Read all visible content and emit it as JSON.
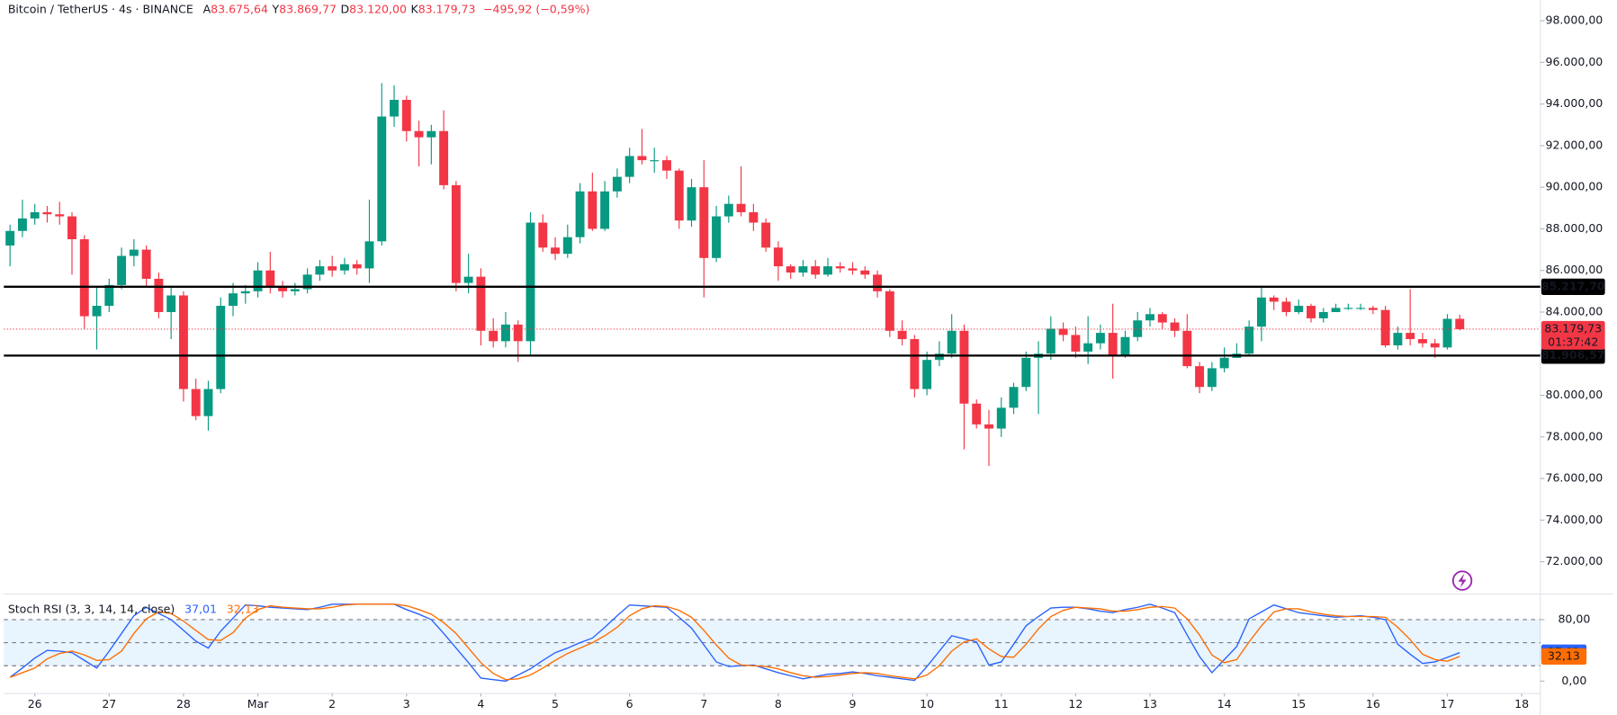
{
  "chart_data": {
    "type": "candlestick",
    "header": {
      "symbol": "Bitcoin / TetherUS · 4s · BINANCE",
      "items": [
        {
          "key": "A",
          "text": "83.675,64"
        },
        {
          "key": "Y",
          "text": "83.869,77"
        },
        {
          "key": "D",
          "text": "83.120,00"
        },
        {
          "key": "K",
          "text": "83.179,73"
        }
      ],
      "change": "−495,92 (−0,59%)"
    },
    "up_color": "#089981",
    "down_color": "#f23645",
    "xlim": [
      -0.5,
      123.5
    ],
    "xticks": [
      {
        "value": 2,
        "label": "26"
      },
      {
        "value": 8,
        "label": "27"
      },
      {
        "value": 14,
        "label": "28"
      },
      {
        "value": 20,
        "label": "Mar"
      },
      {
        "value": 26,
        "label": "2"
      },
      {
        "value": 32,
        "label": "3"
      },
      {
        "value": 38,
        "label": "4"
      },
      {
        "value": 44,
        "label": "5"
      },
      {
        "value": 50,
        "label": "6"
      },
      {
        "value": 56,
        "label": "7"
      },
      {
        "value": 62,
        "label": "8"
      },
      {
        "value": 68,
        "label": "9"
      },
      {
        "value": 74,
        "label": "10"
      },
      {
        "value": 80,
        "label": "11"
      },
      {
        "value": 86,
        "label": "12"
      },
      {
        "value": 92,
        "label": "13"
      },
      {
        "value": 98,
        "label": "14"
      },
      {
        "value": 104,
        "label": "15"
      },
      {
        "value": 110,
        "label": "16"
      },
      {
        "value": 116,
        "label": "17"
      },
      {
        "value": 122,
        "label": "18"
      }
    ],
    "ylim": [
      70500,
      99000
    ],
    "yticks": [
      {
        "value": 72000,
        "label": "72.000,00"
      },
      {
        "value": 74000,
        "label": "74.000,00"
      },
      {
        "value": 76000,
        "label": "76.000,00"
      },
      {
        "value": 78000,
        "label": "78.000,00"
      },
      {
        "value": 80000,
        "label": "80.000,00"
      },
      {
        "value": 82000,
        "label": "82.000,00"
      },
      {
        "value": 84000,
        "label": "84.000,00"
      },
      {
        "value": 86000,
        "label": "86.000,00"
      },
      {
        "value": 88000,
        "label": "88.000,00"
      },
      {
        "value": 90000,
        "label": "90.000,00"
      },
      {
        "value": 92000,
        "label": "92.000,00"
      },
      {
        "value": 94000,
        "label": "94.000,00"
      },
      {
        "value": 96000,
        "label": "96.000,00"
      },
      {
        "value": 98000,
        "label": "98.000,00"
      }
    ],
    "open": [
      87200,
      87900,
      88500,
      88800,
      88700,
      88600,
      87500,
      83800,
      84300,
      85300,
      86700,
      87000,
      85600,
      84000,
      84800,
      80300,
      79000,
      80300,
      84300,
      84900,
      85000,
      86000,
      85200,
      85000,
      85100,
      85800,
      86200,
      86000,
      86300,
      86100,
      87400,
      93400,
      94200,
      92700,
      92400,
      92700,
      90100,
      85400,
      85700,
      83100,
      82600,
      83400,
      82600,
      88300,
      87100,
      86800,
      87600,
      89800,
      88000,
      89800,
      90500,
      91500,
      91300,
      91300,
      90800,
      88400,
      90000,
      86600,
      88600,
      89200,
      88800,
      88300,
      87100,
      86200,
      85900,
      86200,
      85800,
      86200,
      86100,
      86000,
      85800,
      85000,
      83100,
      82700,
      80300,
      81700,
      82000,
      83100,
      79600,
      78600,
      78400,
      79400,
      80400,
      81800,
      82000,
      83200,
      82900,
      82100,
      82500,
      83000,
      81900,
      82800,
      83600,
      83900,
      83500,
      83100,
      81400,
      80400,
      81300,
      81800,
      82000,
      83300,
      84700,
      84500,
      84000,
      84300,
      83700,
      84000,
      84200,
      84200,
      84200,
      84100,
      82400,
      83000,
      82700,
      82500,
      82300,
      83675.64
    ],
    "high": [
      88200,
      89400,
      89200,
      89100,
      89300,
      88800,
      87700,
      85200,
      85600,
      87100,
      87500,
      87200,
      85900,
      85200,
      85000,
      80800,
      80700,
      84700,
      85400,
      85300,
      86400,
      86900,
      85500,
      85400,
      86100,
      86500,
      86700,
      86600,
      86500,
      89400,
      95000,
      94900,
      94400,
      93200,
      93000,
      93700,
      90300,
      86800,
      86100,
      83700,
      84000,
      83600,
      88800,
      88700,
      87600,
      88200,
      90200,
      90700,
      90300,
      90900,
      91900,
      92800,
      91900,
      91500,
      90900,
      90400,
      91300,
      89100,
      89600,
      91000,
      89200,
      88500,
      87400,
      86300,
      86500,
      86500,
      86600,
      86400,
      86400,
      86200,
      86000,
      85100,
      83600,
      82900,
      82100,
      82600,
      83900,
      83400,
      79800,
      79300,
      79900,
      80600,
      82100,
      82600,
      83800,
      83500,
      83300,
      83800,
      83400,
      84400,
      83100,
      84000,
      84200,
      84000,
      83700,
      83900,
      81600,
      81600,
      82300,
      82500,
      83600,
      85200,
      84800,
      84700,
      84600,
      84400,
      84200,
      84400,
      84400,
      84400,
      84300,
      84300,
      83300,
      85100,
      83000,
      82700,
      83900,
      83869.77
    ],
    "low": [
      86200,
      87600,
      88200,
      88300,
      88200,
      85800,
      83200,
      82200,
      84000,
      85100,
      86200,
      85200,
      83700,
      82700,
      79700,
      78800,
      78300,
      80100,
      83800,
      84400,
      84700,
      84900,
      84700,
      84800,
      84900,
      85500,
      85700,
      85800,
      85800,
      85400,
      87200,
      92900,
      92200,
      91000,
      91100,
      89900,
      85000,
      84900,
      82400,
      82300,
      82300,
      81600,
      81900,
      86900,
      86500,
      86600,
      87300,
      87900,
      87900,
      89500,
      90200,
      91100,
      90700,
      90400,
      88000,
      88100,
      84700,
      86400,
      88300,
      88600,
      87900,
      86900,
      85500,
      85600,
      85700,
      85600,
      85700,
      85900,
      85800,
      85600,
      84700,
      82800,
      82400,
      79900,
      80000,
      81400,
      81800,
      77400,
      78400,
      76600,
      78000,
      79100,
      80200,
      79100,
      81700,
      82600,
      81800,
      81500,
      82200,
      80800,
      81800,
      82600,
      83300,
      83200,
      82800,
      81300,
      80100,
      80200,
      81100,
      81800,
      81900,
      82600,
      84100,
      83800,
      83900,
      83500,
      83500,
      84000,
      84100,
      84100,
      83900,
      82300,
      82200,
      82400,
      82300,
      81800,
      82200,
      83120
    ],
    "close": [
      87900,
      88500,
      88800,
      88700,
      88600,
      87500,
      83800,
      84300,
      85300,
      86700,
      87000,
      85600,
      84000,
      84800,
      80300,
      79000,
      80300,
      84300,
      84900,
      85000,
      86000,
      85200,
      85000,
      85100,
      85800,
      86200,
      86000,
      86300,
      86100,
      87400,
      93400,
      94200,
      92700,
      92400,
      92700,
      90100,
      85400,
      85700,
      83100,
      82600,
      83400,
      82600,
      88300,
      87100,
      86800,
      87600,
      89800,
      88000,
      89800,
      90500,
      91500,
      91300,
      91300,
      90800,
      88400,
      90000,
      86600,
      88600,
      89200,
      88800,
      88300,
      87100,
      86200,
      85900,
      86200,
      85800,
      86200,
      86100,
      86000,
      85800,
      85000,
      83100,
      82700,
      80300,
      81700,
      82000,
      83100,
      79600,
      78600,
      78400,
      79400,
      80400,
      81800,
      82000,
      83200,
      82900,
      82100,
      82500,
      83000,
      81900,
      82800,
      83600,
      83900,
      83500,
      83100,
      81400,
      80400,
      81300,
      81800,
      82000,
      83300,
      84700,
      84500,
      84000,
      84300,
      83700,
      84000,
      84200,
      84200,
      84200,
      84100,
      82400,
      83000,
      82700,
      82500,
      82300,
      83675.64,
      83179.73
    ],
    "levels": [
      {
        "value": 85217.7,
        "label": "85.217,70"
      },
      {
        "value": 81906.57,
        "label": "81.906,57"
      }
    ],
    "last_price": {
      "value": 83179.73,
      "label": "83.179,73",
      "countdown": "01:37:42"
    },
    "indicator": {
      "title": "Stoch RSI (3, 3, 14, 14, close)",
      "ylim": [
        -16,
        112
      ],
      "yticks": [
        {
          "value": 80,
          "label": "80,00"
        },
        {
          "value": 0,
          "label": "0,00"
        }
      ],
      "band": [
        20,
        80
      ],
      "band_lines": [
        80,
        50,
        20
      ],
      "series": [
        {
          "name": "K",
          "color": "#2962ff",
          "last": {
            "value": 37.01,
            "label": "37,01"
          },
          "values": [
            5,
            17,
            30,
            40,
            39,
            37,
            27,
            17,
            39,
            62,
            85,
            96,
            88,
            80,
            66,
            52,
            43,
            65,
            82,
            99,
            98,
            96,
            95,
            94,
            93,
            96,
            100,
            100,
            100,
            100,
            100,
            100,
            93,
            87,
            80,
            62,
            43,
            24,
            4,
            2,
            0,
            8,
            16,
            27,
            37,
            43,
            50,
            56,
            70,
            85,
            99,
            98,
            97,
            96,
            83,
            69,
            47,
            25,
            19,
            20,
            21,
            16,
            11,
            7,
            3,
            6,
            9,
            10,
            12,
            10,
            7,
            5,
            3,
            1,
            19,
            39,
            59,
            55,
            51,
            21,
            25,
            48,
            72,
            84,
            95,
            96,
            96,
            94,
            91,
            89,
            93,
            96,
            100,
            95,
            89,
            60,
            32,
            11,
            28,
            45,
            81,
            90,
            99,
            94,
            89,
            87,
            85,
            83,
            84,
            85,
            83,
            80,
            48,
            35,
            23,
            25,
            31,
            37.01
          ]
        },
        {
          "name": "D",
          "color": "#ff6d00",
          "last": {
            "value": 32.13,
            "label": "32,13"
          },
          "values": [
            5,
            11,
            17,
            29,
            36,
            39,
            34,
            27,
            28,
            39,
            62,
            81,
            90,
            88,
            78,
            66,
            54,
            53,
            63,
            82,
            93,
            98,
            96,
            95,
            94,
            94,
            96,
            99,
            100,
            100,
            100,
            100,
            98,
            93,
            87,
            76,
            62,
            43,
            24,
            10,
            2,
            3,
            8,
            17,
            27,
            36,
            43,
            50,
            59,
            70,
            85,
            94,
            98,
            97,
            92,
            83,
            66,
            47,
            30,
            21,
            20,
            19,
            16,
            11,
            7,
            5,
            6,
            8,
            10,
            11,
            10,
            7,
            5,
            3,
            8,
            20,
            39,
            51,
            55,
            42,
            32,
            31,
            48,
            68,
            84,
            92,
            96,
            95,
            94,
            91,
            91,
            93,
            96,
            97,
            95,
            81,
            60,
            34,
            24,
            28,
            51,
            72,
            90,
            94,
            94,
            90,
            87,
            85,
            84,
            84,
            84,
            83,
            70,
            54,
            35,
            28,
            26,
            32.13
          ]
        }
      ]
    }
  }
}
